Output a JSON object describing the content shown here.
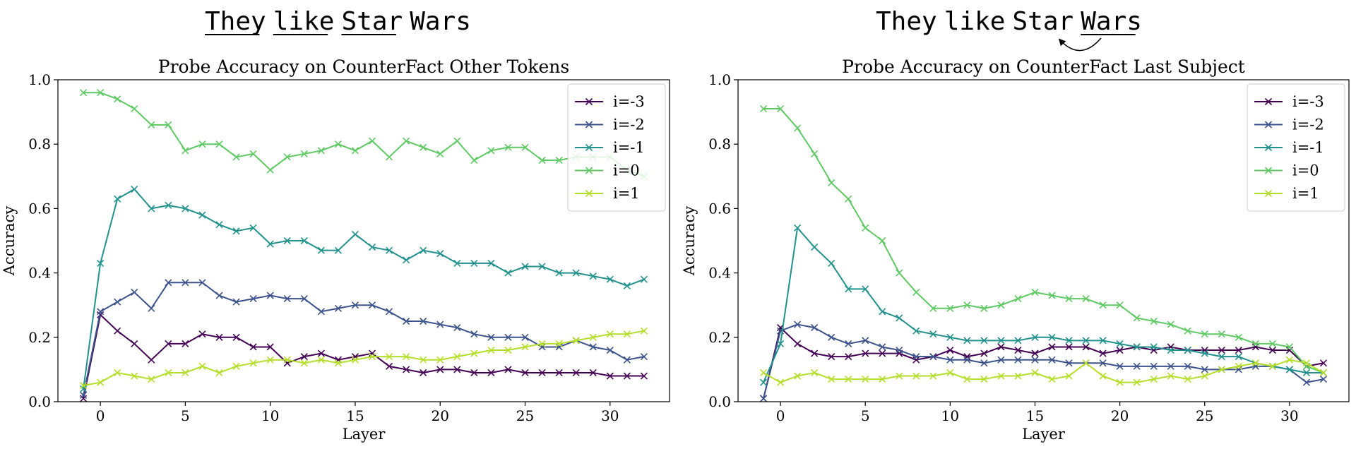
{
  "figure": {
    "headers": [
      {
        "words": [
          "They",
          "like",
          "Star",
          "Wars"
        ],
        "underlined": [
          true,
          true,
          true,
          false
        ]
      },
      {
        "words": [
          "They",
          "like",
          "Star",
          "Wars"
        ],
        "underlined": [
          false,
          false,
          false,
          true
        ],
        "arrow": "from Wars to Star"
      }
    ]
  },
  "chart_data": [
    {
      "type": "line",
      "title": "Probe Accuracy on CounterFact Other Tokens",
      "xlabel": "Layer",
      "ylabel": "Accuracy",
      "xlim": [
        -2.5,
        33.5
      ],
      "ylim": [
        0.0,
        1.0
      ],
      "xticks": [
        0,
        5,
        10,
        15,
        20,
        25,
        30
      ],
      "yticks": [
        0.0,
        0.2,
        0.4,
        0.6,
        0.8,
        1.0
      ],
      "grid": false,
      "legend_position": "top-right",
      "marker": "x",
      "x": [
        -1,
        0,
        1,
        2,
        3,
        4,
        5,
        6,
        7,
        8,
        9,
        10,
        11,
        12,
        13,
        14,
        15,
        16,
        17,
        18,
        19,
        20,
        21,
        22,
        23,
        24,
        25,
        26,
        27,
        28,
        29,
        30,
        31,
        32
      ],
      "series": [
        {
          "name": "i=-3",
          "color": "#440154",
          "values": [
            0.01,
            0.27,
            0.22,
            0.18,
            0.13,
            0.18,
            0.18,
            0.21,
            0.2,
            0.2,
            0.17,
            0.17,
            0.12,
            0.14,
            0.15,
            0.13,
            0.14,
            0.15,
            0.11,
            0.1,
            0.09,
            0.1,
            0.1,
            0.09,
            0.09,
            0.1,
            0.09,
            0.09,
            0.09,
            0.09,
            0.09,
            0.08,
            0.08,
            0.08
          ]
        },
        {
          "name": "i=-2",
          "color": "#3b528b",
          "values": [
            0.02,
            0.28,
            0.31,
            0.34,
            0.29,
            0.37,
            0.37,
            0.37,
            0.33,
            0.31,
            0.32,
            0.33,
            0.32,
            0.32,
            0.28,
            0.29,
            0.3,
            0.3,
            0.28,
            0.25,
            0.25,
            0.24,
            0.23,
            0.21,
            0.2,
            0.2,
            0.2,
            0.17,
            0.17,
            0.19,
            0.17,
            0.16,
            0.13,
            0.14
          ]
        },
        {
          "name": "i=-1",
          "color": "#21918c",
          "values": [
            0.04,
            0.43,
            0.63,
            0.66,
            0.6,
            0.61,
            0.6,
            0.58,
            0.55,
            0.53,
            0.54,
            0.49,
            0.5,
            0.5,
            0.47,
            0.47,
            0.52,
            0.48,
            0.47,
            0.44,
            0.47,
            0.46,
            0.43,
            0.43,
            0.43,
            0.4,
            0.42,
            0.42,
            0.4,
            0.4,
            0.39,
            0.38,
            0.36,
            0.38
          ]
        },
        {
          "name": "i=0",
          "color": "#5ec962",
          "values": [
            0.96,
            0.96,
            0.94,
            0.91,
            0.86,
            0.86,
            0.78,
            0.8,
            0.8,
            0.76,
            0.77,
            0.72,
            0.76,
            0.77,
            0.78,
            0.8,
            0.78,
            0.81,
            0.76,
            0.81,
            0.79,
            0.77,
            0.81,
            0.75,
            0.78,
            0.79,
            0.79,
            0.75,
            0.75,
            0.76,
            0.76,
            0.76,
            0.72,
            0.7
          ]
        },
        {
          "name": "i=1",
          "color": "#b5de2b",
          "values": [
            0.05,
            0.06,
            0.09,
            0.08,
            0.07,
            0.09,
            0.09,
            0.11,
            0.09,
            0.11,
            0.12,
            0.13,
            0.13,
            0.12,
            0.13,
            0.12,
            0.13,
            0.14,
            0.14,
            0.14,
            0.13,
            0.13,
            0.14,
            0.15,
            0.16,
            0.16,
            0.17,
            0.18,
            0.18,
            0.19,
            0.2,
            0.21,
            0.21,
            0.22
          ]
        }
      ]
    },
    {
      "type": "line",
      "title": "Probe Accuracy on CounterFact Last Subject",
      "xlabel": "Layer",
      "ylabel": "Accuracy",
      "xlim": [
        -2.5,
        33.5
      ],
      "ylim": [
        0.0,
        1.0
      ],
      "xticks": [
        0,
        5,
        10,
        15,
        20,
        25,
        30
      ],
      "yticks": [
        0.0,
        0.2,
        0.4,
        0.6,
        0.8,
        1.0
      ],
      "grid": false,
      "legend_position": "top-right",
      "marker": "x",
      "x": [
        -1,
        0,
        1,
        2,
        3,
        4,
        5,
        6,
        7,
        8,
        9,
        10,
        11,
        12,
        13,
        14,
        15,
        16,
        17,
        18,
        19,
        20,
        21,
        22,
        23,
        24,
        25,
        26,
        27,
        28,
        29,
        30,
        31,
        32
      ],
      "series": [
        {
          "name": "i=-3",
          "color": "#440154",
          "values": [
            0.01,
            0.23,
            0.18,
            0.15,
            0.14,
            0.14,
            0.15,
            0.15,
            0.15,
            0.13,
            0.14,
            0.16,
            0.14,
            0.15,
            0.17,
            0.16,
            0.15,
            0.17,
            0.17,
            0.17,
            0.15,
            0.16,
            0.17,
            0.16,
            0.17,
            0.16,
            0.16,
            0.16,
            0.16,
            0.17,
            0.16,
            0.16,
            0.11,
            0.12
          ]
        },
        {
          "name": "i=-2",
          "color": "#3b528b",
          "values": [
            0.01,
            0.22,
            0.24,
            0.23,
            0.2,
            0.18,
            0.19,
            0.17,
            0.16,
            0.14,
            0.14,
            0.13,
            0.13,
            0.12,
            0.13,
            0.13,
            0.13,
            0.13,
            0.12,
            0.12,
            0.12,
            0.11,
            0.11,
            0.11,
            0.11,
            0.11,
            0.1,
            0.1,
            0.1,
            0.11,
            0.11,
            0.1,
            0.06,
            0.07
          ]
        },
        {
          "name": "i=-1",
          "color": "#21918c",
          "values": [
            0.06,
            0.18,
            0.54,
            0.48,
            0.43,
            0.35,
            0.35,
            0.28,
            0.26,
            0.22,
            0.21,
            0.2,
            0.19,
            0.19,
            0.19,
            0.19,
            0.2,
            0.2,
            0.19,
            0.19,
            0.19,
            0.18,
            0.17,
            0.17,
            0.16,
            0.16,
            0.15,
            0.14,
            0.14,
            0.12,
            0.11,
            0.1,
            0.09,
            0.09
          ]
        },
        {
          "name": "i=0",
          "color": "#5ec962",
          "values": [
            0.91,
            0.91,
            0.85,
            0.77,
            0.68,
            0.63,
            0.54,
            0.5,
            0.4,
            0.34,
            0.29,
            0.29,
            0.3,
            0.29,
            0.3,
            0.32,
            0.34,
            0.33,
            0.32,
            0.32,
            0.3,
            0.3,
            0.26,
            0.25,
            0.24,
            0.22,
            0.21,
            0.21,
            0.2,
            0.18,
            0.18,
            0.17,
            0.11,
            0.09
          ]
        },
        {
          "name": "i=1",
          "color": "#b5de2b",
          "values": [
            0.09,
            0.06,
            0.08,
            0.09,
            0.07,
            0.07,
            0.07,
            0.07,
            0.08,
            0.08,
            0.08,
            0.09,
            0.07,
            0.07,
            0.08,
            0.08,
            0.09,
            0.07,
            0.08,
            0.12,
            0.08,
            0.06,
            0.06,
            0.07,
            0.08,
            0.07,
            0.08,
            0.1,
            0.11,
            0.12,
            0.11,
            0.13,
            0.12,
            0.09
          ]
        }
      ]
    }
  ]
}
